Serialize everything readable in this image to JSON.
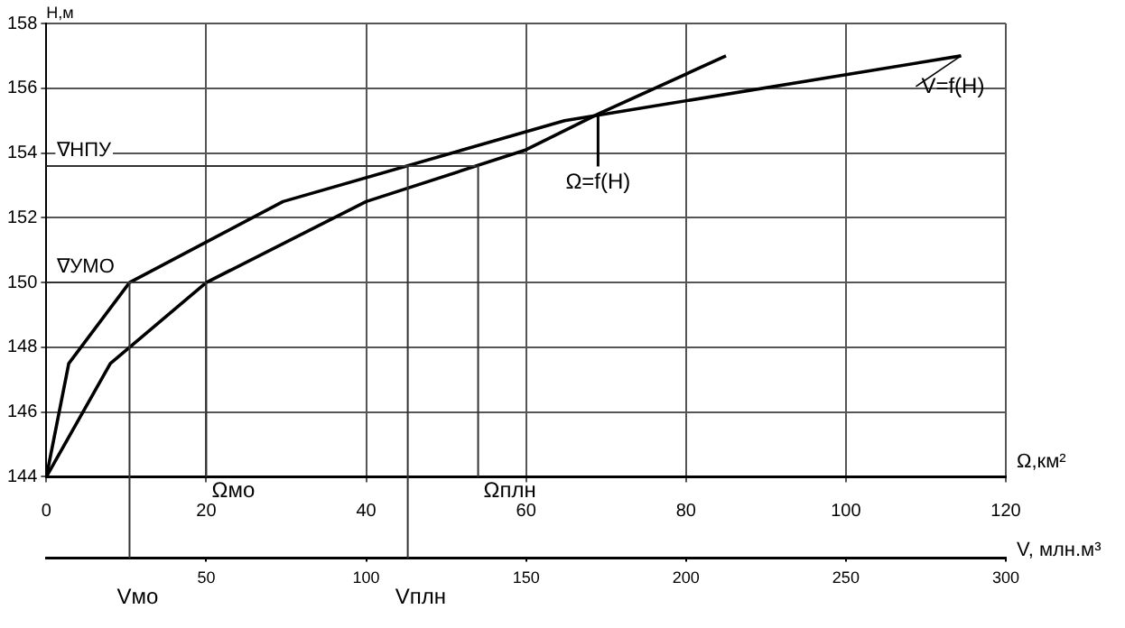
{
  "chart_data": {
    "type": "line",
    "xlabel": "Ω,км²",
    "x2label": "V, млн.м³",
    "ylabel": "H,м",
    "xlim": [
      0,
      120
    ],
    "xticks": [
      0,
      20,
      40,
      60,
      80,
      100,
      120
    ],
    "x2lim": [
      0,
      300
    ],
    "x2ticks": [
      50,
      100,
      150,
      200,
      250,
      300
    ],
    "ylim": [
      144,
      158
    ],
    "yticks": [
      144,
      146,
      148,
      150,
      152,
      154,
      156,
      158
    ],
    "grid": true,
    "legend": false,
    "marker": "none",
    "line_style": "solid",
    "series": [
      {
        "name": "V=f(H)",
        "color": "#000000",
        "axis": "x2",
        "x": [
          0,
          7,
          26,
          74,
          162,
          286
        ],
        "values": [
          144,
          147.5,
          150,
          152.5,
          155,
          157
        ]
      },
      {
        "name": "Ω=f(H)",
        "color": "#000000",
        "x": [
          0,
          8,
          20,
          40,
          60,
          69,
          85
        ],
        "values": [
          144,
          147.5,
          150,
          152.5,
          154.1,
          155.2,
          157
        ]
      }
    ],
    "ref_lines": [
      {
        "axis": "y",
        "value": 153.6,
        "label": "∇НПУ",
        "color": "#333333"
      },
      {
        "axis": "y",
        "value": 150,
        "label": "∇УМО",
        "color": "#333333"
      },
      {
        "axis": "x",
        "value": 20,
        "label": "Ωмо",
        "color": "#333333"
      },
      {
        "axis": "x",
        "value": 54,
        "label": "Ωплн",
        "color": "#333333"
      },
      {
        "axis": "x2",
        "value": 26,
        "label": "Vмо",
        "color": "#333333"
      },
      {
        "axis": "x2",
        "value": 113,
        "label": "Vплн",
        "color": "#333333"
      }
    ]
  }
}
